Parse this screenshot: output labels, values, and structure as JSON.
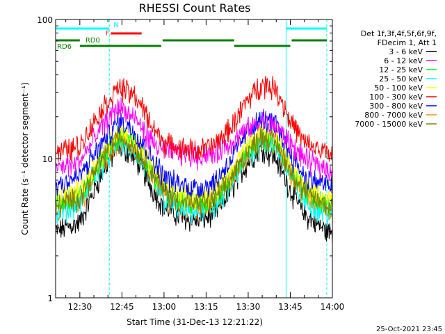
{
  "chart_data": {
    "type": "line",
    "title": "RHESSI Count Rates",
    "xlabel": "Start Time (31-Dec-13 12:21:22)",
    "ylabel": "Count Rate (s⁻¹ detector segment⁻¹)",
    "yscale": "log",
    "ylim": [
      1,
      100
    ],
    "xlim": [
      "12:21:22",
      "14:00:00"
    ],
    "x_ticks": [
      "12:30",
      "12:45",
      "13:00",
      "13:15",
      "13:30",
      "13:45",
      "14:00"
    ],
    "y_ticks": [
      "1",
      "10",
      "100"
    ],
    "footer": "25-Oct-2021 23:45",
    "legend_header": [
      "Det 1f,3f,4f,5f,6f,9f,",
      "FDecim 1, Att 1"
    ],
    "legend_position": "top-right (outside plot)",
    "vertical_lines": [
      {
        "time": "12:21:22",
        "style": "solid",
        "color": "#00ffff"
      },
      {
        "time": "12:40:30",
        "style": "dashed",
        "color": "#00ffff"
      },
      {
        "time": "13:43:30",
        "style": "solid",
        "color": "#00ffff"
      },
      {
        "time": "13:58:00",
        "style": "dashed",
        "color": "#00ffff"
      }
    ],
    "flag_bars": [
      {
        "label": "N",
        "color": "#00ffff",
        "segments": [
          [
            "12:21:22",
            "12:40:30"
          ],
          [
            "13:43:30",
            "13:58:00"
          ]
        ]
      },
      {
        "label": "F",
        "color": "#ff0000",
        "segments": [
          [
            "12:41:00",
            "12:52:00"
          ]
        ]
      },
      {
        "label": "RD0",
        "color": "#008000",
        "segments": [
          [
            "12:21:22",
            "12:30:00"
          ],
          [
            "12:59:30",
            "13:25:00"
          ],
          [
            "13:45:30",
            "13:58:00"
          ]
        ]
      },
      {
        "label": "RD6",
        "color": "#008000",
        "segments": [
          [
            "12:30:00",
            "12:59:00"
          ],
          [
            "13:25:00",
            "13:45:00"
          ]
        ]
      }
    ],
    "x_times": [
      "12:21:22",
      "12:30",
      "12:38",
      "12:44",
      "12:50",
      "12:56",
      "13:00",
      "13:06",
      "13:12",
      "13:18",
      "13:24",
      "13:30",
      "13:35",
      "13:40",
      "13:45",
      "13:50",
      "13:58"
    ],
    "series": [
      {
        "name": "3 - 6 keV",
        "color": "#000000",
        "values": [
          3.0,
          3.5,
          8.0,
          12.5,
          10.0,
          6.0,
          4.5,
          3.8,
          3.6,
          4.0,
          6.0,
          9.5,
          12.0,
          10.0,
          6.0,
          4.0,
          3.0
        ]
      },
      {
        "name": "6 - 12 keV",
        "color": "#ff00ff",
        "values": [
          8.5,
          9.5,
          17.0,
          24.0,
          19.0,
          13.0,
          11.5,
          11.0,
          10.5,
          11.0,
          13.0,
          16.5,
          18.5,
          17.0,
          13.0,
          10.0,
          8.5
        ]
      },
      {
        "name": "12 - 25 keV",
        "color": "#00ff00",
        "values": [
          4.8,
          5.5,
          10.0,
          15.0,
          12.5,
          8.0,
          6.0,
          5.0,
          4.8,
          5.2,
          7.5,
          12.0,
          15.0,
          13.5,
          8.5,
          6.0,
          4.8
        ]
      },
      {
        "name": "25 - 50 keV",
        "color": "#00ffff",
        "values": [
          4.0,
          4.8,
          9.0,
          13.5,
          11.0,
          7.0,
          5.0,
          4.3,
          4.1,
          4.5,
          6.5,
          10.5,
          13.5,
          12.0,
          7.5,
          5.0,
          4.0
        ]
      },
      {
        "name": "50 - 100 keV",
        "color": "#ffff00",
        "values": [
          5.2,
          6.0,
          11.0,
          16.0,
          13.0,
          8.5,
          6.5,
          5.5,
          5.2,
          5.7,
          8.0,
          13.0,
          16.5,
          14.5,
          9.0,
          6.5,
          5.2
        ]
      },
      {
        "name": "100 - 300 keV",
        "color": "#ff0000",
        "values": [
          11.0,
          12.5,
          23.0,
          33.0,
          28.0,
          17.0,
          13.0,
          12.0,
          11.5,
          12.5,
          17.0,
          27.0,
          35.0,
          32.0,
          19.0,
          13.0,
          11.0
        ]
      },
      {
        "name": "300 - 800 keV",
        "color": "#0000ff",
        "values": [
          6.5,
          7.5,
          13.0,
          19.0,
          15.5,
          10.0,
          7.5,
          6.5,
          6.2,
          6.8,
          10.0,
          16.0,
          19.5,
          17.5,
          11.0,
          7.5,
          6.5
        ]
      },
      {
        "name": "800 - 7000 keV",
        "color": "#ff8c00",
        "values": [
          4.3,
          5.0,
          9.5,
          14.0,
          11.5,
          7.5,
          5.5,
          4.6,
          4.4,
          4.8,
          7.0,
          11.0,
          14.0,
          12.5,
          8.0,
          5.5,
          4.3
        ]
      },
      {
        "name": "7000 - 15000 keV",
        "color": "#808000",
        "values": [
          4.6,
          5.3,
          10.0,
          14.5,
          12.0,
          7.8,
          5.8,
          4.9,
          4.7,
          5.1,
          7.3,
          11.5,
          14.5,
          13.0,
          8.3,
          5.8,
          4.6
        ]
      }
    ]
  }
}
